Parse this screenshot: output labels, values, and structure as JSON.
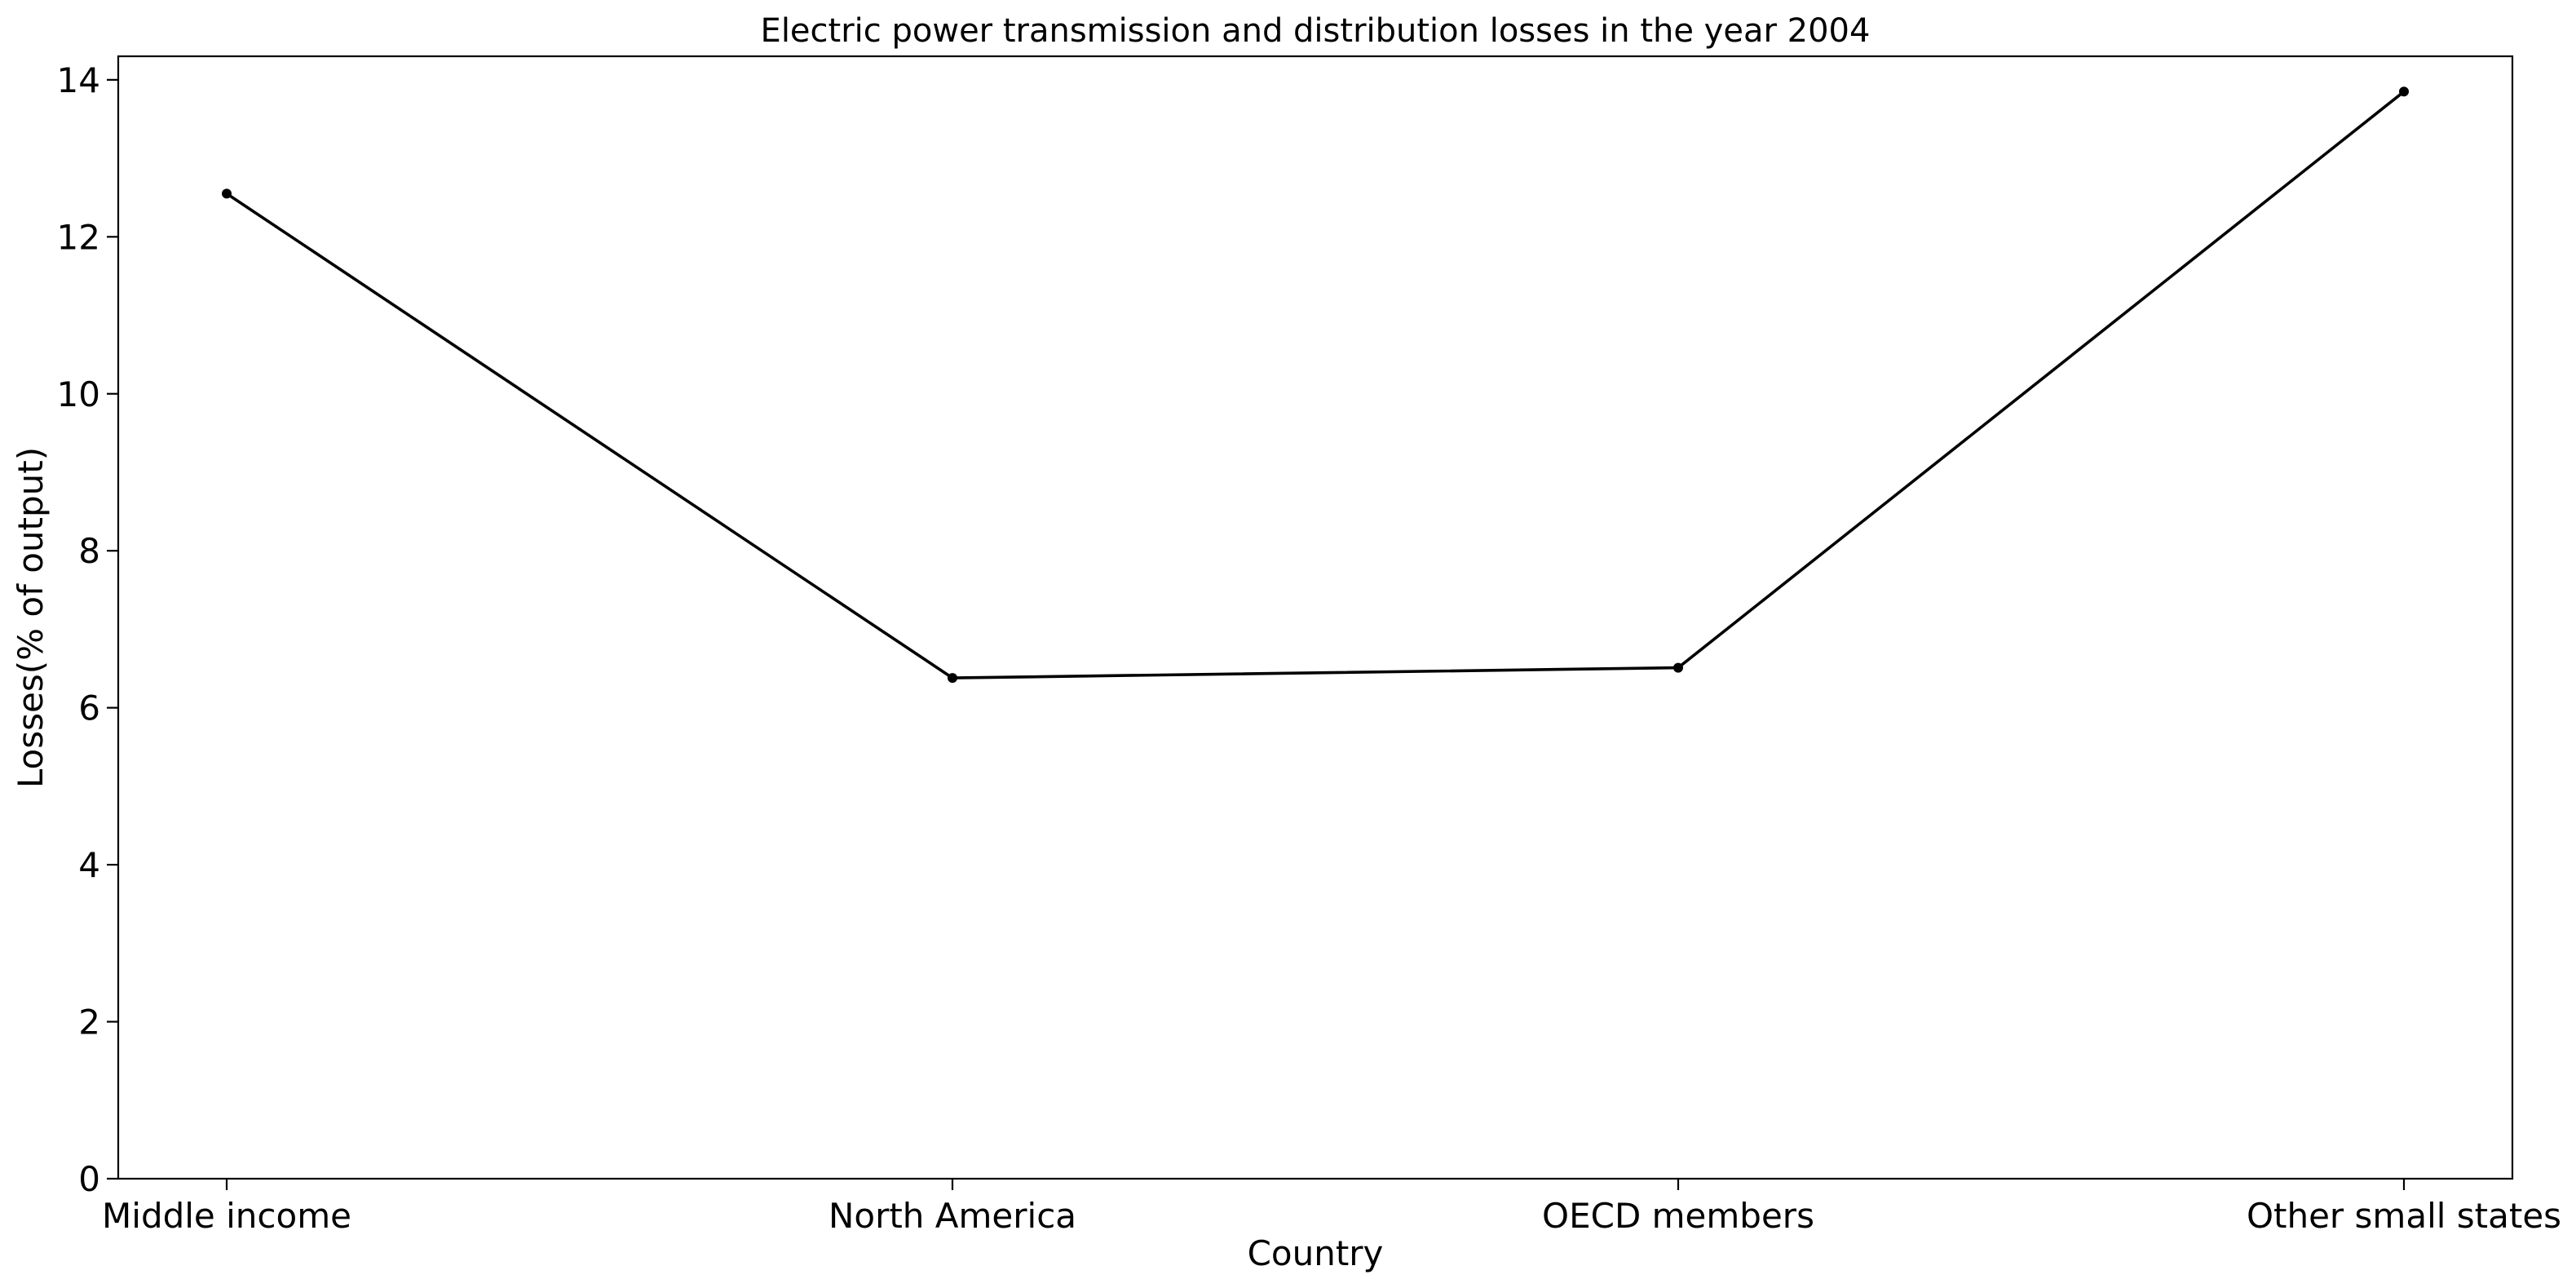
{
  "chart_data": {
    "type": "line",
    "title": "Electric power transmission and distribution losses in the year 2004",
    "xlabel": "Country",
    "ylabel": "Losses(% of output)",
    "categories": [
      "Middle income",
      "North America",
      "OECD members",
      "Other small states"
    ],
    "series": [
      {
        "values": [
          12.55,
          6.38,
          6.51,
          13.85
        ],
        "color": "#000000"
      }
    ],
    "ylim": [
      0,
      14.3
    ],
    "yticks": [
      0,
      2,
      4,
      6,
      8,
      10,
      12,
      14
    ],
    "grid": false,
    "legend": "none"
  }
}
